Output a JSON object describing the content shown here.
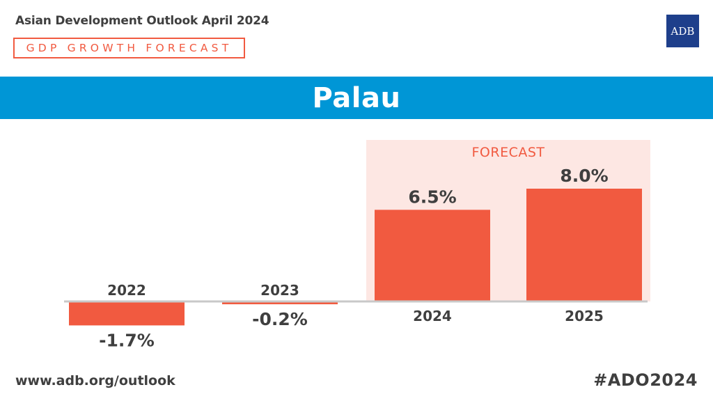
{
  "header": {
    "publication": "Asian Development Outlook April 2024",
    "tag": "GDP GROWTH FORECAST",
    "logo_text": "ADB"
  },
  "banner": {
    "country": "Palau"
  },
  "chart_data": {
    "type": "bar",
    "categories": [
      "2022",
      "2023",
      "2024",
      "2025"
    ],
    "values": [
      -1.7,
      -0.2,
      6.5,
      8.0
    ],
    "value_labels": [
      "-1.7%",
      "-0.2%",
      "6.5%",
      "8.0%"
    ],
    "forecast_label": "FORECAST",
    "forecast_categories": [
      "2024",
      "2025"
    ],
    "bar_color": "#f15a40",
    "forecast_bg_color": "#fde7e3",
    "ylim": [
      -1.7,
      8.0
    ],
    "grid": false,
    "legend": "none"
  },
  "footer": {
    "url": "www.adb.org/outlook",
    "hashtag": "#ADO2024"
  }
}
